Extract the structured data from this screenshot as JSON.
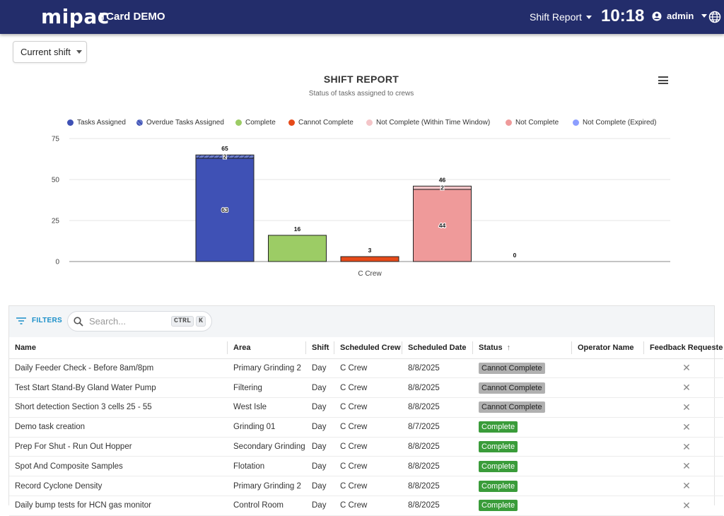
{
  "header": {
    "brand": "mipac",
    "app_title": "TCard DEMO",
    "shift_menu": "Shift Report",
    "clock": "10:18",
    "user": "admin"
  },
  "shift_select": {
    "value": "Current shift"
  },
  "chart_data": {
    "type": "bar",
    "title": "SHIFT REPORT",
    "subtitle": "Status of tasks assigned to crews",
    "categories": [
      "C Crew"
    ],
    "ylim": [
      0,
      75
    ],
    "yticks": [
      0,
      25,
      50,
      75
    ],
    "grid": true,
    "legend_position": "top",
    "legend": [
      {
        "name": "Tasks Assigned",
        "color": "#3f51b5"
      },
      {
        "name": "Overdue Tasks Assigned",
        "color": "#6d7fcc"
      },
      {
        "name": "Complete",
        "color": "#9ccc65"
      },
      {
        "name": "Cannot Complete",
        "color": "#e64a19"
      },
      {
        "name": "Not Complete (Within Time Window)",
        "color": "#f4c5c8"
      },
      {
        "name": "Not Complete",
        "color": "#ef9a9a"
      },
      {
        "name": "Not Complete (Expired)",
        "color": "#8c9eff"
      }
    ],
    "bars": [
      {
        "name": "Tasks Assigned",
        "total": 65,
        "segments": [
          {
            "series": "Tasks Assigned",
            "value": 63,
            "color": "#3f51b5"
          },
          {
            "series": "Overdue Tasks Assigned",
            "value": 2,
            "color": "#6d7fcc",
            "hatched": true
          }
        ]
      },
      {
        "name": "Complete",
        "total": 16,
        "segments": [
          {
            "series": "Complete",
            "value": 16,
            "color": "#9ccc65"
          }
        ]
      },
      {
        "name": "Cannot Complete",
        "total": 3,
        "segments": [
          {
            "series": "Cannot Complete",
            "value": 3,
            "color": "#e64a19"
          }
        ]
      },
      {
        "name": "Not Complete",
        "total": 46,
        "segments": [
          {
            "series": "Not Complete",
            "value": 44,
            "color": "#ef9a9a"
          },
          {
            "series": "Not Complete (Within Time Window)",
            "value": 2,
            "color": "#f4c5c8"
          }
        ]
      },
      {
        "name": "Not Complete (Expired)",
        "total": 0,
        "segments": []
      }
    ]
  },
  "table": {
    "filters_label": "FILTERS",
    "search_placeholder": "Search...",
    "kbd": [
      "CTRL",
      "K"
    ],
    "columns": [
      "Name",
      "Area",
      "Shift",
      "Scheduled Crew",
      "Scheduled Date",
      "Status",
      "Operator Name",
      "Feedback Requested"
    ],
    "rows": [
      {
        "name": "Daily Feeder Check - Before 8am/8pm",
        "area": "Primary Grinding 2",
        "shift": "Day",
        "crew": "C Crew",
        "date": "8/8/2025",
        "status": "Cannot Complete",
        "operator": "",
        "feedback": "✕"
      },
      {
        "name": "Test Start Stand-By Gland Water Pump",
        "area": "Filtering",
        "shift": "Day",
        "crew": "C Crew",
        "date": "8/8/2025",
        "status": "Cannot Complete",
        "operator": "",
        "feedback": "✕"
      },
      {
        "name": "Short detection Section 3 cells 25 - 55",
        "area": "West Isle",
        "shift": "Day",
        "crew": "C Crew",
        "date": "8/8/2025",
        "status": "Cannot Complete",
        "operator": "",
        "feedback": "✕"
      },
      {
        "name": "Demo task creation",
        "area": "Grinding 01",
        "shift": "Day",
        "crew": "C Crew",
        "date": "8/7/2025",
        "status": "Complete",
        "operator": "",
        "feedback": "✕"
      },
      {
        "name": "Prep For Shut - Run Out Hopper",
        "area": "Secondary Grinding",
        "shift": "Day",
        "crew": "C Crew",
        "date": "8/8/2025",
        "status": "Complete",
        "operator": "",
        "feedback": "✕"
      },
      {
        "name": "Spot And Composite Samples",
        "area": "Flotation",
        "shift": "Day",
        "crew": "C Crew",
        "date": "8/8/2025",
        "status": "Complete",
        "operator": "",
        "feedback": "✕"
      },
      {
        "name": "Record Cyclone Density",
        "area": "Primary Grinding 2",
        "shift": "Day",
        "crew": "C Crew",
        "date": "8/8/2025",
        "status": "Complete",
        "operator": "",
        "feedback": "✕"
      },
      {
        "name": "Daily bump tests for HCN gas monitor",
        "area": "Control Room",
        "shift": "Day",
        "crew": "C Crew",
        "date": "8/8/2025",
        "status": "Complete",
        "operator": "",
        "feedback": "✕"
      }
    ]
  },
  "colors": {
    "header_bg": "#232d6b",
    "accent": "#1a8fc9",
    "badge_complete": "#3a9c3a",
    "badge_cannot": "#b0b0b0"
  }
}
